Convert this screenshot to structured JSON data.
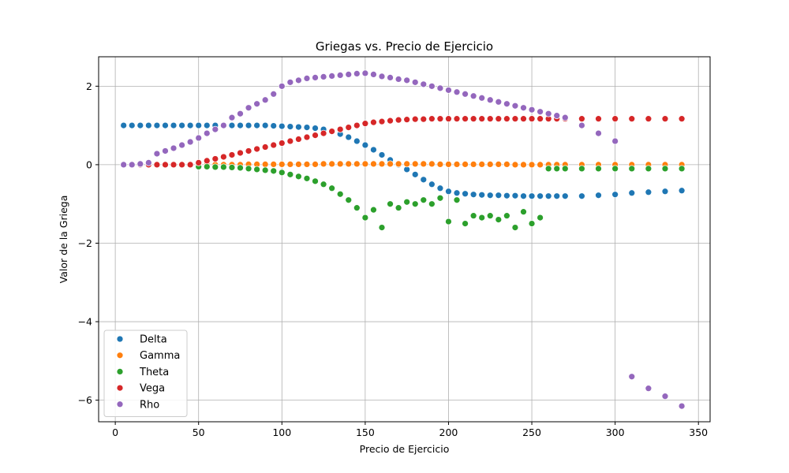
{
  "chart_data": {
    "type": "scatter",
    "title": "Griegas vs. Precio de Ejercicio",
    "xlabel": "Precio de Ejercicio",
    "ylabel": "Valor de la Griega",
    "xlim": [
      -10,
      357
    ],
    "ylim": [
      -6.55,
      2.75
    ],
    "xticks": [
      0,
      50,
      100,
      150,
      200,
      250,
      300,
      350
    ],
    "yticks": [
      -6,
      -4,
      -2,
      0,
      2
    ],
    "grid": true,
    "legend_position": "lower-left",
    "x": [
      5,
      10,
      15,
      20,
      25,
      30,
      35,
      40,
      45,
      50,
      55,
      60,
      65,
      70,
      75,
      80,
      85,
      90,
      95,
      100,
      105,
      110,
      115,
      120,
      125,
      130,
      135,
      140,
      145,
      150,
      155,
      160,
      165,
      170,
      175,
      180,
      185,
      190,
      195,
      200,
      205,
      210,
      215,
      220,
      225,
      230,
      235,
      240,
      245,
      250,
      255,
      260,
      265,
      270,
      280,
      290,
      300,
      310,
      320,
      330,
      340
    ],
    "series": [
      {
        "name": "Delta",
        "color": "#1f77b4",
        "values": [
          1.0,
          1.0,
          1.0,
          1.0,
          1.0,
          1.0,
          1.0,
          1.0,
          1.0,
          1.0,
          1.0,
          1.0,
          1.0,
          1.0,
          1.0,
          1.0,
          1.0,
          1.0,
          0.99,
          0.98,
          0.97,
          0.96,
          0.95,
          0.93,
          0.9,
          0.85,
          0.78,
          0.7,
          0.6,
          0.5,
          0.38,
          0.25,
          0.12,
          0.0,
          -0.12,
          -0.25,
          -0.38,
          -0.5,
          -0.6,
          -0.68,
          -0.72,
          -0.74,
          -0.76,
          -0.77,
          -0.78,
          -0.78,
          -0.79,
          -0.79,
          -0.8,
          -0.8,
          -0.8,
          -0.8,
          -0.8,
          -0.8,
          -0.8,
          -0.78,
          -0.76,
          -0.72,
          -0.7,
          -0.68,
          -0.66
        ]
      },
      {
        "name": "Gamma",
        "color": "#ff7f0e",
        "values": [
          0.0,
          0.0,
          0.0,
          0.0,
          0.0,
          0.0,
          0.0,
          0.0,
          0.0,
          0.0,
          0.0,
          0.0,
          0.0,
          0.0,
          0.0,
          0.01,
          0.01,
          0.01,
          0.01,
          0.01,
          0.01,
          0.01,
          0.01,
          0.01,
          0.02,
          0.02,
          0.02,
          0.02,
          0.02,
          0.02,
          0.02,
          0.02,
          0.02,
          0.02,
          0.02,
          0.02,
          0.02,
          0.02,
          0.01,
          0.01,
          0.01,
          0.01,
          0.01,
          0.01,
          0.01,
          0.01,
          0.01,
          0.0,
          0.0,
          0.0,
          0.0,
          0.0,
          0.0,
          0.0,
          0.0,
          0.0,
          0.0,
          0.0,
          0.0,
          0.0,
          0.0
        ]
      },
      {
        "name": "Theta",
        "color": "#2ca02c",
        "values": [
          0.0,
          0.0,
          0.0,
          0.0,
          0.0,
          0.0,
          0.0,
          0.0,
          0.0,
          -0.05,
          -0.05,
          -0.06,
          -0.06,
          -0.07,
          -0.08,
          -0.1,
          -0.12,
          -0.14,
          -0.16,
          -0.2,
          -0.25,
          -0.3,
          -0.35,
          -0.42,
          -0.5,
          -0.6,
          -0.75,
          -0.9,
          -1.1,
          -1.35,
          -1.15,
          -1.6,
          -1.0,
          -1.1,
          -0.95,
          -1.0,
          -0.9,
          -1.0,
          -0.85,
          -1.45,
          -0.9,
          -1.5,
          -1.3,
          -1.35,
          -1.3,
          -1.4,
          -1.3,
          -1.6,
          -1.2,
          -1.5,
          -1.35,
          -0.1,
          -0.1,
          -0.1,
          -0.1,
          -0.1,
          -0.1,
          -0.1,
          -0.1,
          -0.1,
          -0.1
        ]
      },
      {
        "name": "Vega",
        "color": "#d62728",
        "values": [
          0.0,
          0.0,
          0.0,
          0.0,
          0.0,
          0.0,
          0.0,
          0.0,
          0.0,
          0.05,
          0.1,
          0.15,
          0.2,
          0.25,
          0.3,
          0.35,
          0.4,
          0.45,
          0.5,
          0.55,
          0.6,
          0.65,
          0.7,
          0.75,
          0.8,
          0.85,
          0.9,
          0.95,
          1.0,
          1.05,
          1.08,
          1.1,
          1.12,
          1.14,
          1.15,
          1.16,
          1.16,
          1.17,
          1.17,
          1.17,
          1.17,
          1.17,
          1.17,
          1.17,
          1.17,
          1.17,
          1.17,
          1.17,
          1.17,
          1.17,
          1.17,
          1.17,
          1.17,
          1.17,
          1.17,
          1.17,
          1.17,
          1.17,
          1.17,
          1.17,
          1.17
        ]
      },
      {
        "name": "Rho",
        "color": "#9467bd",
        "values": [
          0.0,
          0.0,
          0.02,
          0.05,
          0.28,
          0.35,
          0.42,
          0.5,
          0.58,
          0.68,
          0.8,
          0.9,
          1.0,
          1.2,
          1.3,
          1.45,
          1.55,
          1.65,
          1.8,
          2.0,
          2.1,
          2.15,
          2.2,
          2.22,
          2.24,
          2.26,
          2.28,
          2.3,
          2.32,
          2.33,
          2.3,
          2.25,
          2.22,
          2.18,
          2.15,
          2.1,
          2.05,
          2.0,
          1.95,
          1.9,
          1.85,
          1.8,
          1.75,
          1.7,
          1.65,
          1.6,
          1.55,
          1.5,
          1.45,
          1.4,
          1.35,
          1.3,
          1.25,
          1.2,
          1.0,
          0.8,
          0.6,
          -5.4,
          -5.7,
          -5.9,
          -6.15
        ]
      }
    ]
  }
}
